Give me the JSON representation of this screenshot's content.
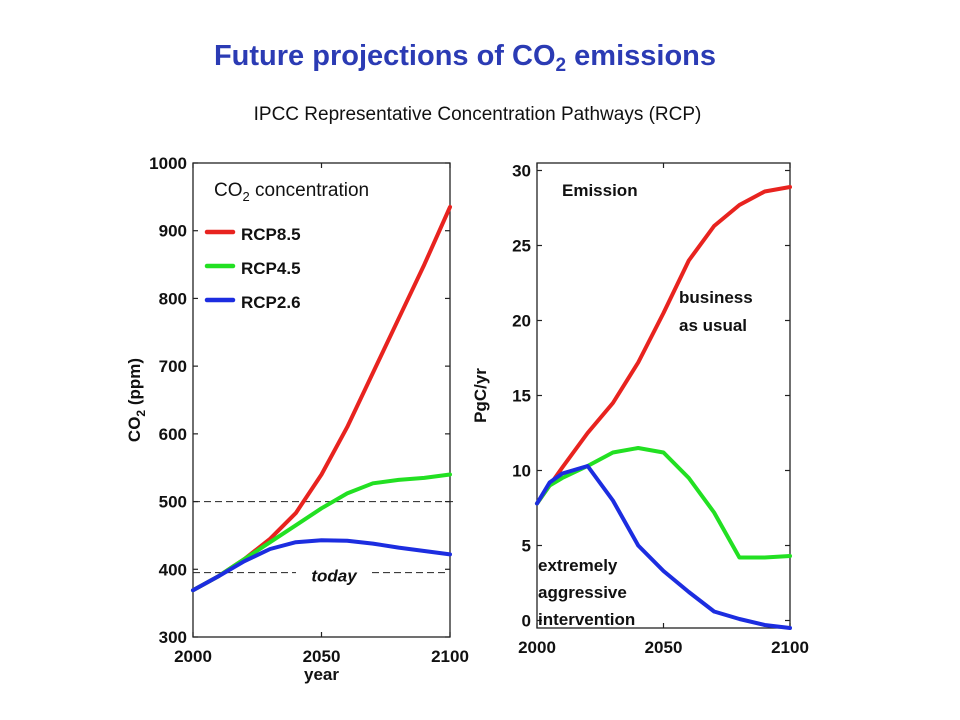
{
  "title": {
    "main": "Future projections of CO",
    "sub": "2",
    "rest": " emissions"
  },
  "subtitle": "IPCC Representative Concentration Pathways (RCP)",
  "chart_data": [
    {
      "type": "line",
      "title": "CO2 concentration",
      "title_parts": {
        "main": "CO",
        "sub": "2",
        "rest": " concentration"
      },
      "xlabel": "year",
      "ylabel": "CO2 (ppm)",
      "ylabel_parts": {
        "main": "CO",
        "sub": "2",
        "rest": " (ppm)"
      },
      "xlim": [
        2000,
        2100
      ],
      "ylim": [
        300,
        1000
      ],
      "xticks": [
        2000,
        2050,
        2100
      ],
      "yticks": [
        300,
        400,
        500,
        600,
        700,
        800,
        900,
        1000
      ],
      "legend": "top-left",
      "series": [
        {
          "name": "RCP8.5",
          "color": "#e8231f",
          "x": [
            2000,
            2010,
            2020,
            2030,
            2040,
            2050,
            2060,
            2070,
            2080,
            2090,
            2100
          ],
          "y": [
            369,
            390,
            415,
            445,
            483,
            540,
            610,
            690,
            770,
            850,
            935
          ]
        },
        {
          "name": "RCP4.5",
          "color": "#22e022",
          "x": [
            2000,
            2010,
            2020,
            2030,
            2040,
            2050,
            2060,
            2070,
            2080,
            2090,
            2100
          ],
          "y": [
            369,
            390,
            415,
            440,
            465,
            490,
            512,
            527,
            532,
            535,
            540
          ]
        },
        {
          "name": "RCP2.6",
          "color": "#1c2de0",
          "x": [
            2000,
            2010,
            2020,
            2030,
            2040,
            2050,
            2060,
            2070,
            2080,
            2090,
            2100
          ],
          "y": [
            369,
            390,
            412,
            430,
            440,
            443,
            442,
            438,
            432,
            427,
            422
          ]
        }
      ],
      "reference_lines": [
        {
          "y": 500,
          "style": "dashed"
        },
        {
          "y": 395,
          "style": "dashed",
          "label": "today"
        }
      ]
    },
    {
      "type": "line",
      "title": "Emission",
      "xlabel": "",
      "ylabel": "PgC/yr",
      "xlim": [
        2000,
        2100
      ],
      "ylim": [
        -0.5,
        30.5
      ],
      "xticks": [
        2000,
        2050,
        2100
      ],
      "yticks": [
        0,
        5,
        10,
        15,
        20,
        25,
        30
      ],
      "series": [
        {
          "color": "#e8231f",
          "annotation": "business as usual",
          "x": [
            2000,
            2005,
            2010,
            2020,
            2030,
            2040,
            2050,
            2060,
            2070,
            2080,
            2090,
            2100
          ],
          "y": [
            7.8,
            9.0,
            10.2,
            12.5,
            14.5,
            17.2,
            20.5,
            24.0,
            26.3,
            27.7,
            28.6,
            28.9
          ]
        },
        {
          "color": "#22e022",
          "x": [
            2000,
            2005,
            2010,
            2020,
            2030,
            2040,
            2050,
            2060,
            2070,
            2080,
            2090,
            2100
          ],
          "y": [
            7.8,
            9.0,
            9.5,
            10.3,
            11.2,
            11.5,
            11.2,
            9.5,
            7.2,
            4.2,
            4.2,
            4.3
          ]
        },
        {
          "color": "#1c2de0",
          "annotation": "extremely aggressive intervention",
          "x": [
            2000,
            2005,
            2010,
            2020,
            2030,
            2040,
            2050,
            2060,
            2070,
            2080,
            2090,
            2100
          ],
          "y": [
            7.8,
            9.2,
            9.8,
            10.3,
            8.0,
            5.0,
            3.3,
            1.9,
            0.6,
            0.1,
            -0.3,
            -0.5
          ]
        }
      ]
    }
  ],
  "annotations": {
    "today": "today",
    "business": [
      "business",
      "as usual"
    ],
    "intervention": [
      "extremely",
      "aggressive",
      "intervention"
    ]
  }
}
